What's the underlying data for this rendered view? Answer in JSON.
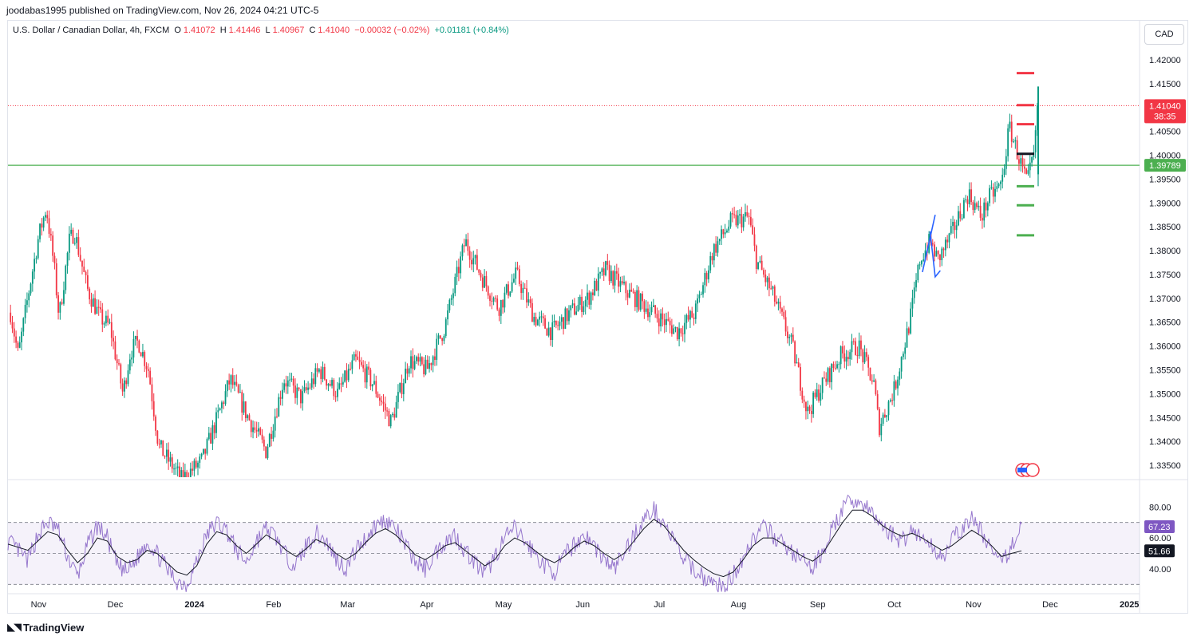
{
  "header": {
    "credit": "joodabas1995 published on TradingView.com, Nov 26, 2024 04:21 UTC-5"
  },
  "legend": {
    "symbol": "U.S. Dollar / Canadian Dollar, 4h, FXCM",
    "o_label": "O",
    "o_value": "1.41072",
    "h_label": "H",
    "h_value": "1.41446",
    "l_label": "L",
    "l_value": "1.40967",
    "c_label": "C",
    "c_value": "1.41040",
    "change": "−0.00032 (−0.02%)",
    "change2": "+0.01181 (+0.84%)"
  },
  "currency_button": "CAD",
  "footer": {
    "brand": "TradingView"
  },
  "colors": {
    "up": "#089981",
    "down": "#f23645",
    "support": "#4caf50",
    "resistance": "#f23645",
    "rsi": "#7e57c2",
    "rsi_ma": "#131722",
    "pattern": "#2962ff"
  },
  "chart_data": [
    {
      "type": "candlestick",
      "title": "U.S. Dollar / Canadian Dollar, 4h, FXCM",
      "ylim": [
        1.3325,
        1.4225
      ],
      "y_ticks": [
        "1.42000",
        "1.41500",
        "1.41000",
        "1.40500",
        "1.40000",
        "1.39500",
        "1.39000",
        "1.38500",
        "1.38000",
        "1.37500",
        "1.37000",
        "1.36500",
        "1.36000",
        "1.35500",
        "1.35000",
        "1.34500",
        "1.34000",
        "1.33500"
      ],
      "x_ticks": [
        "Nov",
        "Dec",
        "2024",
        "Feb",
        "Mar",
        "Apr",
        "May",
        "Jun",
        "Jul",
        "Aug",
        "Sep",
        "Oct",
        "Nov",
        "Dec",
        "2025"
      ],
      "price_path": [
        {
          "date": "2023-10-21",
          "close": 1.367
        },
        {
          "date": "2023-10-24",
          "close": 1.358
        },
        {
          "date": "2023-10-28",
          "close": 1.371
        },
        {
          "date": "2023-11-01",
          "close": 1.383
        },
        {
          "date": "2023-11-04",
          "close": 1.389
        },
        {
          "date": "2023-11-07",
          "close": 1.377
        },
        {
          "date": "2023-11-09",
          "close": 1.366
        },
        {
          "date": "2023-11-13",
          "close": 1.382
        },
        {
          "date": "2023-11-15",
          "close": 1.384
        },
        {
          "date": "2023-11-20",
          "close": 1.372
        },
        {
          "date": "2023-11-25",
          "close": 1.366
        },
        {
          "date": "2023-11-29",
          "close": 1.364
        },
        {
          "date": "2023-12-04",
          "close": 1.35
        },
        {
          "date": "2023-12-07",
          "close": 1.359
        },
        {
          "date": "2023-12-10",
          "close": 1.361
        },
        {
          "date": "2023-12-14",
          "close": 1.355
        },
        {
          "date": "2023-12-18",
          "close": 1.339
        },
        {
          "date": "2023-12-27",
          "close": 1.332
        },
        {
          "date": "2024-01-04",
          "close": 1.336
        },
        {
          "date": "2024-01-10",
          "close": 1.345
        },
        {
          "date": "2024-01-15",
          "close": 1.353
        },
        {
          "date": "2024-01-22",
          "close": 1.345
        },
        {
          "date": "2024-01-29",
          "close": 1.338
        },
        {
          "date": "2024-02-05",
          "close": 1.353
        },
        {
          "date": "2024-02-12",
          "close": 1.349
        },
        {
          "date": "2024-02-19",
          "close": 1.355
        },
        {
          "date": "2024-02-26",
          "close": 1.35
        },
        {
          "date": "2024-03-04",
          "close": 1.357
        },
        {
          "date": "2024-03-11",
          "close": 1.352
        },
        {
          "date": "2024-03-18",
          "close": 1.344
        },
        {
          "date": "2024-03-25",
          "close": 1.357
        },
        {
          "date": "2024-04-01",
          "close": 1.355
        },
        {
          "date": "2024-04-08",
          "close": 1.364
        },
        {
          "date": "2024-04-16",
          "close": 1.382
        },
        {
          "date": "2024-04-22",
          "close": 1.375
        },
        {
          "date": "2024-04-29",
          "close": 1.368
        },
        {
          "date": "2024-05-06",
          "close": 1.375
        },
        {
          "date": "2024-05-13",
          "close": 1.366
        },
        {
          "date": "2024-05-20",
          "close": 1.363
        },
        {
          "date": "2024-05-27",
          "close": 1.367
        },
        {
          "date": "2024-06-03",
          "close": 1.37
        },
        {
          "date": "2024-06-10",
          "close": 1.376
        },
        {
          "date": "2024-06-17",
          "close": 1.372
        },
        {
          "date": "2024-06-24",
          "close": 1.369
        },
        {
          "date": "2024-07-01",
          "close": 1.366
        },
        {
          "date": "2024-07-08",
          "close": 1.363
        },
        {
          "date": "2024-07-15",
          "close": 1.367
        },
        {
          "date": "2024-07-22",
          "close": 1.38
        },
        {
          "date": "2024-07-29",
          "close": 1.386
        },
        {
          "date": "2024-08-05",
          "close": 1.387
        },
        {
          "date": "2024-08-08",
          "close": 1.378
        },
        {
          "date": "2024-08-15",
          "close": 1.37
        },
        {
          "date": "2024-08-22",
          "close": 1.36
        },
        {
          "date": "2024-08-28",
          "close": 1.346
        },
        {
          "date": "2024-09-03",
          "close": 1.352
        },
        {
          "date": "2024-09-10",
          "close": 1.358
        },
        {
          "date": "2024-09-17",
          "close": 1.36
        },
        {
          "date": "2024-09-23",
          "close": 1.352
        },
        {
          "date": "2024-09-25",
          "close": 1.343
        },
        {
          "date": "2024-10-01",
          "close": 1.351
        },
        {
          "date": "2024-10-07",
          "close": 1.365
        },
        {
          "date": "2024-10-11",
          "close": 1.378
        },
        {
          "date": "2024-10-15",
          "close": 1.382
        },
        {
          "date": "2024-10-18",
          "close": 1.378
        },
        {
          "date": "2024-10-23",
          "close": 1.383
        },
        {
          "date": "2024-10-30",
          "close": 1.392
        },
        {
          "date": "2024-11-04",
          "close": 1.387
        },
        {
          "date": "2024-11-07",
          "close": 1.391
        },
        {
          "date": "2024-11-12",
          "close": 1.394
        },
        {
          "date": "2024-11-15",
          "close": 1.406
        },
        {
          "date": "2024-11-19",
          "close": 1.399
        },
        {
          "date": "2024-11-22",
          "close": 1.394
        },
        {
          "date": "2024-11-25",
          "close": 1.401
        },
        {
          "date": "2024-11-26",
          "close": 1.4104
        }
      ],
      "horizontal_lines": [
        {
          "value": 1.39789,
          "label": "1.39789"
        },
        {
          "value": 1.4104,
          "label": "1.41040",
          "timer": "38:35",
          "style": "dotted"
        }
      ],
      "target_marks": [
        {
          "value": 1.4172,
          "color": "#f23645"
        },
        {
          "value": 1.4105,
          "color": "#f23645"
        },
        {
          "value": 1.4065,
          "color": "#f23645"
        },
        {
          "value": 1.4003,
          "color": "#131722"
        },
        {
          "value": 1.3935,
          "color": "#4caf50"
        },
        {
          "value": 1.3895,
          "color": "#4caf50"
        },
        {
          "value": 1.3832,
          "color": "#4caf50"
        }
      ],
      "pattern_lines": [
        {
          "points": [
            {
              "date": "2024-10-12",
              "value": 1.3755
            },
            {
              "date": "2024-10-17",
              "value": 1.3875
            }
          ]
        },
        {
          "points": [
            {
              "date": "2024-10-15",
              "value": 1.384
            },
            {
              "date": "2024-10-17",
              "value": 1.3745
            },
            {
              "date": "2024-10-19",
              "value": 1.3758
            }
          ]
        }
      ]
    },
    {
      "type": "line",
      "title": "RSI",
      "ylim": [
        25,
        92
      ],
      "y_ticks": [
        "80.00",
        "60.00",
        "40.00"
      ],
      "bands": [
        70,
        50,
        30
      ],
      "series": [
        {
          "values": [
            58,
            52,
            45,
            62,
            70,
            66,
            48,
            35,
            55,
            68,
            60,
            42,
            38,
            47,
            58,
            50,
            40,
            32,
            30,
            45,
            62,
            70,
            65,
            52,
            44,
            58,
            66,
            60,
            48,
            42,
            55,
            63,
            58,
            47,
            40,
            52,
            60,
            68,
            72,
            66,
            55,
            45,
            40,
            50,
            58,
            62,
            52,
            44,
            36,
            48,
            60,
            66,
            58,
            50,
            42,
            38,
            48,
            56,
            62,
            55,
            46,
            40,
            50,
            62,
            72,
            78,
            70,
            58,
            46,
            40,
            35,
            30,
            28,
            36,
            48,
            60,
            66,
            62,
            56,
            50,
            45,
            40,
            52,
            66,
            78,
            85,
            82,
            75,
            68,
            62,
            58,
            66,
            60,
            54,
            48,
            58,
            66,
            72,
            64,
            52,
            42,
            55,
            67
          ]
        },
        {
          "values": [
            56,
            54,
            52,
            58,
            64,
            62,
            52,
            44,
            50,
            60,
            58,
            48,
            44,
            46,
            52,
            50,
            44,
            38,
            36,
            42,
            56,
            64,
            62,
            55,
            50,
            56,
            62,
            58,
            52,
            48,
            53,
            59,
            56,
            50,
            46,
            50,
            57,
            63,
            66,
            62,
            56,
            49,
            46,
            50,
            55,
            57,
            52,
            47,
            42,
            46,
            55,
            60,
            57,
            52,
            47,
            44,
            48,
            54,
            58,
            55,
            50,
            46,
            50,
            58,
            66,
            72,
            68,
            60,
            52,
            46,
            41,
            37,
            35,
            38,
            46,
            55,
            60,
            60,
            56,
            52,
            48,
            45,
            50,
            60,
            70,
            78,
            78,
            74,
            68,
            64,
            61,
            63,
            60,
            56,
            52,
            55,
            60,
            65,
            61,
            55,
            48,
            50,
            51.66
          ]
        }
      ],
      "value_labels": [
        {
          "value": 67.23,
          "label": "67.23"
        },
        {
          "value": 51.66,
          "label": "51.66"
        }
      ]
    }
  ]
}
